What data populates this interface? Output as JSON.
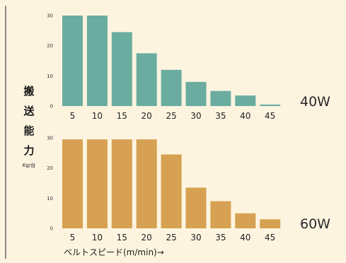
{
  "chart_data": [
    {
      "type": "bar",
      "categories": [
        "5",
        "10",
        "15",
        "20",
        "25",
        "30",
        "35",
        "40",
        "45"
      ],
      "values": [
        30,
        30,
        24.5,
        17.5,
        12,
        8,
        5,
        3.5,
        0.5
      ],
      "ylim": [
        0,
        30
      ],
      "yticks": [
        "0",
        "10",
        "20",
        "30"
      ],
      "series_label": "40W",
      "color": "#6aada0"
    },
    {
      "type": "bar",
      "categories": [
        "5",
        "10",
        "15",
        "20",
        "25",
        "30",
        "35",
        "40",
        "45"
      ],
      "values": [
        29.5,
        29.5,
        29.5,
        29.5,
        24.5,
        13.5,
        9,
        5,
        3
      ],
      "ylim": [
        0,
        30
      ],
      "yticks": [
        "0",
        "10",
        "20",
        "30"
      ],
      "series_label": "60W",
      "color": "#d6a152"
    }
  ],
  "ylabel": "搬送能力",
  "ylabel_unit": "Kg/台",
  "xlabel": "ベルトスピード(m/min)→",
  "background": "#fdf4e0",
  "grid": false,
  "legend": "none"
}
